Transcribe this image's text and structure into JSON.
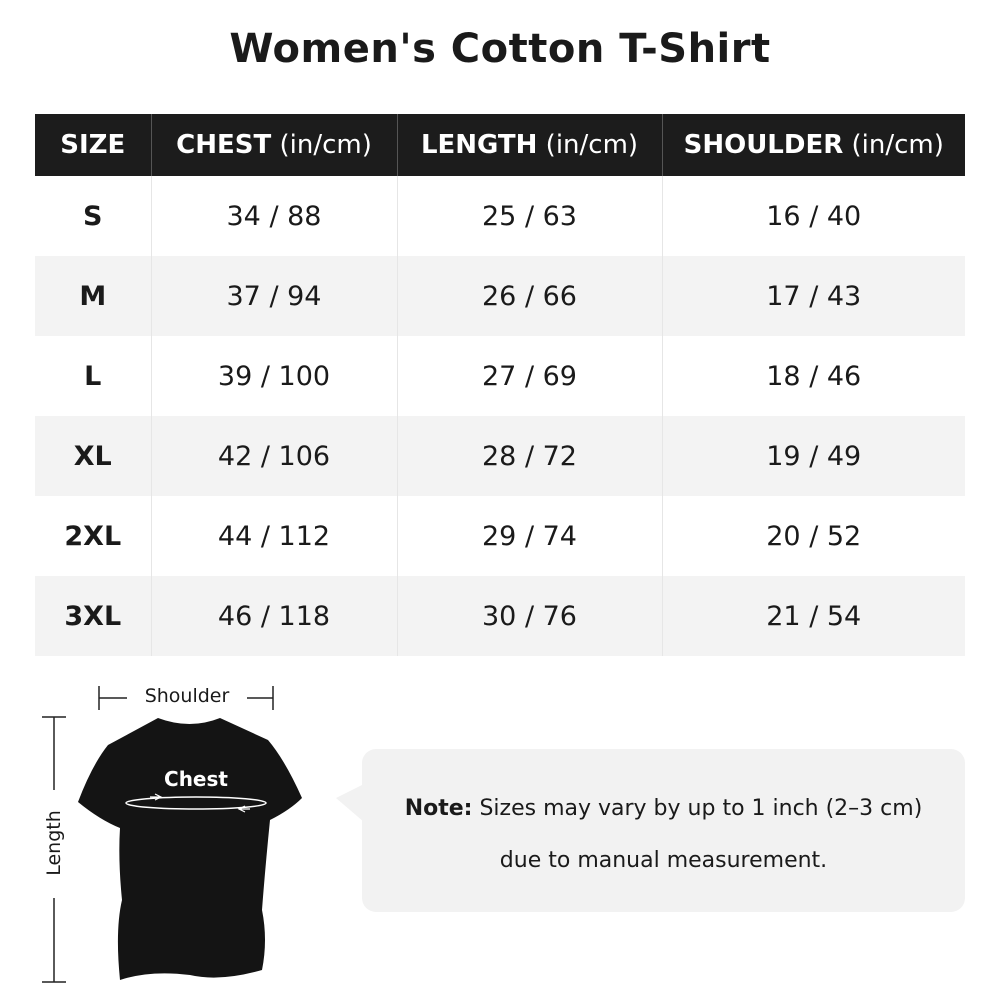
{
  "title": "Women's Cotton T-Shirt",
  "table": {
    "headers": [
      {
        "label": "SIZE",
        "unit": ""
      },
      {
        "label": "CHEST",
        "unit": " (in/cm)"
      },
      {
        "label": "LENGTH",
        "unit": " (in/cm)"
      },
      {
        "label": "SHOULDER",
        "unit": " (in/cm)"
      }
    ],
    "rows": [
      [
        "S",
        "34 / 88",
        "25 / 63",
        "16 / 40"
      ],
      [
        "M",
        "37 / 94",
        "26 / 66",
        "17 / 43"
      ],
      [
        "L",
        "39 / 100",
        "27 / 69",
        "18 / 46"
      ],
      [
        "XL",
        "42 / 106",
        "28 / 72",
        "19 / 49"
      ],
      [
        "2XL",
        "44 / 112",
        "29 / 74",
        "20 / 52"
      ],
      [
        "3XL",
        "46 / 118",
        "30 / 76",
        "21 / 54"
      ]
    ]
  },
  "diagram": {
    "shoulder_label": "Shoulder",
    "chest_label": "Chest",
    "length_label": "Length"
  },
  "note": {
    "prefix": "Note:",
    "line1": " Sizes may vary by up to 1 inch (2–3 cm)",
    "line2": "due to manual measurement."
  },
  "colors": {
    "header_bg": "#1c1c1c",
    "alt_row": "#f3f3f3",
    "note_bg": "#f2f2f2"
  }
}
